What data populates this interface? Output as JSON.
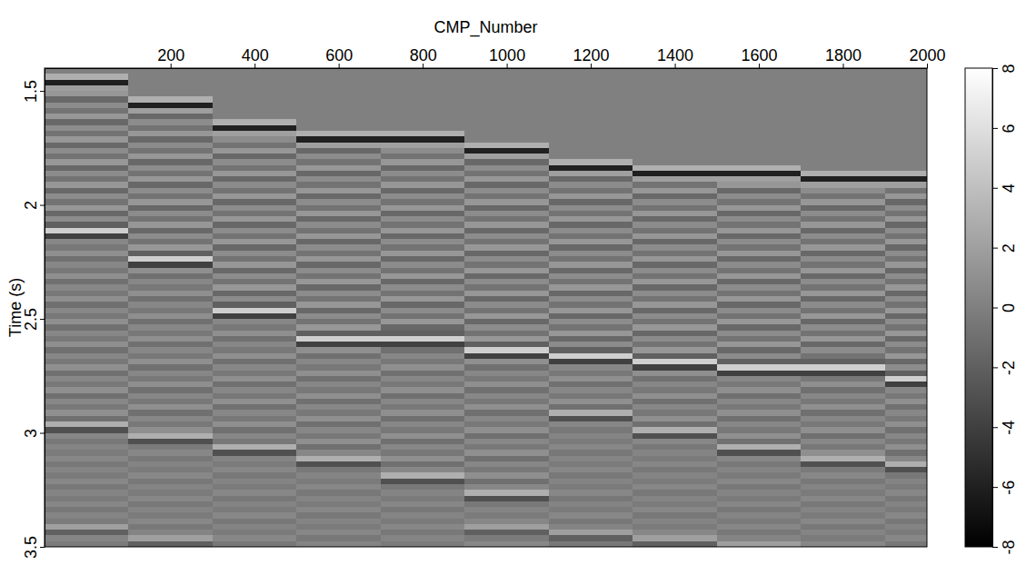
{
  "chart_data": {
    "type": "heatmap",
    "x_label": "CMP_Number",
    "y_label": "Time (s)",
    "xlim": [
      -100,
      2000
    ],
    "ylim": [
      1.4,
      3.5
    ],
    "xticks": [
      200,
      400,
      600,
      800,
      1000,
      1200,
      1400,
      1600,
      1800,
      2000
    ],
    "yticks": [
      1.5,
      2,
      2.5,
      3,
      3.5
    ],
    "x_edges": [
      -100,
      100,
      300,
      500,
      700,
      900,
      1100,
      1300,
      1500,
      1700,
      1900,
      2000
    ],
    "y_edges": [
      1.4,
      1.425,
      1.45,
      1.475,
      1.5,
      1.525,
      1.55,
      1.575,
      1.6,
      1.625,
      1.65,
      1.675,
      1.7,
      1.725,
      1.75,
      1.775,
      1.8,
      1.825,
      1.85,
      1.875,
      1.9,
      1.925,
      1.95,
      1.975,
      2,
      2.025,
      2.05,
      2.075,
      2.1,
      2.125,
      2.15,
      2.175,
      2.2,
      2.225,
      2.25,
      2.275,
      2.3,
      2.325,
      2.35,
      2.375,
      2.4,
      2.425,
      2.45,
      2.475,
      2.5,
      2.525,
      2.55,
      2.575,
      2.6,
      2.625,
      2.65,
      2.675,
      2.7,
      2.725,
      2.75,
      2.775,
      2.8,
      2.825,
      2.85,
      2.875,
      2.9,
      2.925,
      2.95,
      2.975,
      3,
      3.025,
      3.05,
      3.075,
      3.1,
      3.125,
      3.15,
      3.175,
      3.2,
      3.225,
      3.25,
      3.275,
      3.3,
      3.325,
      3.35,
      3.375,
      3.4,
      3.425,
      3.45,
      3.475,
      3.5
    ],
    "z": [
      [
        0,
        0,
        0,
        0,
        0,
        0,
        0,
        0,
        0,
        0,
        0
      ],
      [
        3,
        0,
        0,
        0,
        0,
        0,
        0,
        0,
        0,
        0,
        0
      ],
      [
        -6,
        0,
        0,
        0,
        0,
        0,
        0,
        0,
        0,
        0,
        0
      ],
      [
        2,
        0,
        0,
        0,
        0,
        0,
        0,
        0,
        0,
        0,
        0
      ],
      [
        1.5,
        0,
        0,
        0,
        0,
        0,
        0,
        0,
        0,
        0,
        0
      ],
      [
        -1.5,
        3,
        0,
        0,
        0,
        0,
        0,
        0,
        0,
        0,
        0
      ],
      [
        0.8,
        -6,
        0,
        0,
        0,
        0,
        0,
        0,
        0,
        0,
        0
      ],
      [
        -0.8,
        2,
        0,
        0,
        0,
        0,
        0,
        0,
        0,
        0,
        0
      ],
      [
        1.5,
        -1.5,
        0,
        0,
        0,
        0,
        0,
        0,
        0,
        0,
        0
      ],
      [
        -1.5,
        0.8,
        3,
        0,
        0,
        0,
        0,
        0,
        0,
        0,
        0
      ],
      [
        0.8,
        -0.8,
        -6,
        0,
        0,
        0,
        0,
        0,
        0,
        0,
        0
      ],
      [
        -0.8,
        1.5,
        2,
        3,
        3,
        0,
        0,
        0,
        0,
        0,
        0
      ],
      [
        1.5,
        -1.5,
        0.8,
        -6,
        -6,
        0,
        0,
        0,
        0,
        0,
        0
      ],
      [
        -1.5,
        0.8,
        -0.8,
        2,
        2,
        3,
        0,
        0,
        0,
        0,
        0
      ],
      [
        0.8,
        -0.8,
        1.5,
        -1.5,
        0.8,
        -6,
        0,
        0,
        0,
        0,
        0
      ],
      [
        -0.8,
        1.5,
        -1.5,
        0.8,
        -0.8,
        2,
        0,
        0,
        0,
        0,
        0
      ],
      [
        1.5,
        -1.5,
        0.8,
        -0.8,
        1.5,
        -1.5,
        3,
        0,
        0,
        0,
        0
      ],
      [
        -1.5,
        0.8,
        -0.8,
        1.5,
        -1.5,
        0.8,
        -6,
        3,
        3,
        0,
        0
      ],
      [
        0.8,
        -0.8,
        1.5,
        -1.5,
        0.8,
        -0.8,
        2,
        -6,
        -6,
        3,
        3
      ],
      [
        -0.8,
        1.5,
        -1.5,
        0.8,
        -0.8,
        1.5,
        -1.5,
        2,
        2,
        -6,
        -6
      ],
      [
        1.5,
        -1.5,
        0.8,
        -0.8,
        1.5,
        -1.5,
        0.8,
        -0.8,
        1.5,
        2,
        2
      ],
      [
        -1.5,
        0.8,
        -0.8,
        1.5,
        -1.5,
        0.8,
        -0.8,
        1.5,
        -1.5,
        0.8,
        -0.8
      ],
      [
        0.8,
        -0.8,
        1.5,
        -1.5,
        0.8,
        -0.8,
        1.5,
        -1.5,
        0.8,
        -0.8,
        1.5
      ],
      [
        -0.8,
        1.5,
        -1.5,
        0.8,
        -0.8,
        1.5,
        -1.5,
        0.8,
        -0.8,
        1.5,
        -1.5
      ],
      [
        1.5,
        -1.5,
        0.8,
        -0.8,
        1.5,
        -1.5,
        0.8,
        -0.8,
        1.5,
        -1.5,
        0.8
      ],
      [
        -1.5,
        0.8,
        -0.8,
        1.5,
        -1.5,
        0.8,
        -0.8,
        1.5,
        -1.5,
        0.8,
        -0.8
      ],
      [
        0.8,
        -0.8,
        1.5,
        -1.5,
        0.8,
        -0.8,
        1.5,
        -1.5,
        0.8,
        -0.8,
        1.5
      ],
      [
        -2,
        1.5,
        -1.5,
        0.8,
        -0.8,
        1.5,
        -1.5,
        0.8,
        -0.8,
        1.5,
        -1.5
      ],
      [
        5,
        -1.5,
        0.8,
        -0.8,
        1.5,
        -1.5,
        0.8,
        -0.8,
        1.5,
        -1.5,
        0.8
      ],
      [
        -4,
        0.8,
        -0.8,
        1.5,
        -1.5,
        0.8,
        -0.8,
        1.5,
        -1.5,
        0.8,
        -0.8
      ],
      [
        0.5,
        -0.8,
        1.5,
        -1.5,
        0.8,
        -0.8,
        1.5,
        -1.5,
        0.8,
        -0.8,
        1.5
      ],
      [
        -0.5,
        1.5,
        -1.5,
        0.8,
        -0.8,
        1.5,
        -1.5,
        0.8,
        -0.8,
        1.5,
        -1.5
      ],
      [
        1,
        -2,
        0.8,
        -0.8,
        1.5,
        -1.5,
        0.8,
        -0.8,
        1.5,
        -1.5,
        0.8
      ],
      [
        -1,
        5,
        -0.8,
        1.5,
        -1.5,
        0.8,
        -0.8,
        1.5,
        -1.5,
        0.8,
        -0.8
      ],
      [
        0.5,
        -4,
        1.5,
        -1.5,
        0.8,
        -0.8,
        1.5,
        -1.5,
        0.8,
        -0.8,
        1.5
      ],
      [
        -0.5,
        1,
        -1.5,
        0.8,
        -0.8,
        1.5,
        -1.5,
        0.8,
        -0.8,
        1.5,
        -1.5
      ],
      [
        1,
        -1,
        0.8,
        -0.8,
        1.5,
        -1.5,
        0.8,
        -0.8,
        1.5,
        -1.5,
        0.8
      ],
      [
        -1,
        0.5,
        -0.8,
        1.5,
        -1.5,
        0.8,
        -0.8,
        1.5,
        -1.5,
        0.8,
        -0.8
      ],
      [
        0.5,
        -0.5,
        1.5,
        -1.5,
        0.8,
        -0.8,
        1.5,
        -1.5,
        0.8,
        -0.8,
        1.5
      ],
      [
        -0.5,
        1,
        -1.5,
        0.8,
        -0.8,
        1.5,
        -1.5,
        0.8,
        -0.8,
        1.5,
        -1.5
      ],
      [
        1,
        -1,
        0.8,
        -0.8,
        1.5,
        -1.5,
        0.8,
        -0.8,
        1.5,
        -1.5,
        0.8
      ],
      [
        -1,
        0.5,
        -2,
        1.5,
        -1.5,
        0.8,
        -0.8,
        1.5,
        -1.5,
        0.8,
        -0.8
      ],
      [
        0.5,
        -0.5,
        5,
        -1.5,
        0.8,
        -0.8,
        1.5,
        -1.5,
        0.8,
        -0.8,
        1.5
      ],
      [
        -0.5,
        1,
        -4,
        0.8,
        -0.8,
        1.5,
        -1.5,
        0.8,
        -0.8,
        1.5,
        -1.5
      ],
      [
        1,
        -1,
        0.5,
        -0.8,
        1.5,
        -1.5,
        0.8,
        -0.8,
        1.5,
        -1.5,
        0.8
      ],
      [
        -1,
        0.5,
        -0.5,
        1.5,
        -1.5,
        0.8,
        -0.8,
        1.5,
        -1.5,
        0.8,
        -0.8
      ],
      [
        0.5,
        -0.5,
        1,
        -2,
        -2,
        -0.8,
        1.5,
        -1.5,
        0.8,
        -0.8,
        1.5
      ],
      [
        -0.5,
        1,
        -1,
        5,
        5,
        1.5,
        -1.5,
        0.8,
        -0.8,
        1.5,
        -1.5
      ],
      [
        1,
        -1,
        0.5,
        -4,
        -4,
        -2,
        0.8,
        -0.8,
        1.5,
        -1.5,
        0.8
      ],
      [
        -1,
        0.5,
        -0.5,
        1,
        -1,
        5,
        -2,
        1.5,
        -1.5,
        0.8,
        -0.8
      ],
      [
        0.5,
        -0.5,
        1,
        -1,
        0.5,
        -4,
        5,
        -2,
        0.8,
        -0.8,
        1.5
      ],
      [
        -0.5,
        1,
        -1,
        0.5,
        -0.5,
        1,
        -4,
        5,
        -2,
        -2,
        -1.5
      ],
      [
        1,
        -1,
        0.5,
        -0.5,
        1,
        -1,
        0.5,
        -4,
        5,
        5,
        0.8
      ],
      [
        -1,
        0.5,
        -0.5,
        1,
        -1,
        0.5,
        -0.5,
        1,
        -4,
        -4,
        -2
      ],
      [
        0.5,
        -0.5,
        1,
        -1,
        0.5,
        -0.5,
        1,
        -1,
        0.5,
        -0.5,
        5
      ],
      [
        -0.5,
        1,
        -1,
        0.5,
        -0.5,
        1,
        -1,
        0.5,
        -0.5,
        1,
        -4
      ],
      [
        1,
        -1,
        0.5,
        -0.5,
        1,
        -1,
        0.5,
        -0.5,
        1,
        -1,
        0.5
      ],
      [
        -1,
        0.5,
        -0.5,
        1,
        -1,
        0.5,
        -0.5,
        1,
        -1,
        0.5,
        -0.5
      ],
      [
        0.5,
        -0.5,
        1,
        -1,
        0.5,
        -0.5,
        1,
        -1,
        0.5,
        -0.5,
        1
      ],
      [
        -0.5,
        1,
        -1,
        0.5,
        -0.5,
        1,
        -1,
        0.5,
        -0.5,
        1,
        -1
      ],
      [
        1,
        -1,
        0.5,
        -0.5,
        1,
        -1,
        3,
        -0.5,
        1,
        -1,
        0.5
      ],
      [
        -1,
        0.5,
        -0.5,
        1,
        -1,
        0.5,
        -3,
        1,
        -1,
        0.5,
        -0.5
      ],
      [
        3,
        -0.5,
        1,
        -1,
        0.5,
        -0.5,
        0.5,
        -1,
        0.5,
        -0.5,
        1
      ],
      [
        -3,
        1,
        -1,
        0.5,
        -0.5,
        1,
        -0.5,
        3,
        -0.5,
        1,
        -1
      ],
      [
        0.5,
        3,
        0.5,
        -0.5,
        1,
        -1,
        0.3,
        -3,
        1,
        -1,
        0.5
      ],
      [
        -0.5,
        -3,
        -0.5,
        1,
        -1,
        0.5,
        -0.3,
        0.5,
        -1,
        0.5,
        -0.5
      ],
      [
        0.3,
        -0.3,
        3,
        -1,
        0.5,
        -0.5,
        0.5,
        -0.5,
        3,
        -0.5,
        1
      ],
      [
        -0.3,
        0.5,
        -3,
        0.5,
        -0.5,
        1,
        -0.5,
        0.3,
        -3,
        1,
        -1
      ],
      [
        0.5,
        -0.5,
        0.3,
        3,
        1,
        -1,
        0.3,
        -0.3,
        0.5,
        3,
        0.5
      ],
      [
        -0.5,
        0.3,
        -0.3,
        -3,
        -1,
        0.5,
        -0.3,
        0.5,
        -0.5,
        -3,
        3
      ],
      [
        0.3,
        -0.3,
        0.5,
        -0.5,
        0.5,
        -0.5,
        0.5,
        -0.5,
        0.3,
        -0.3,
        -3
      ],
      [
        -0.3,
        0.5,
        -0.5,
        0.3,
        3,
        1,
        -0.5,
        0.3,
        -0.3,
        0.5,
        -0.5
      ],
      [
        0.5,
        -0.5,
        0.3,
        -0.3,
        -3,
        -1,
        0.3,
        -0.3,
        0.5,
        -0.5,
        0.3
      ],
      [
        -0.5,
        0.3,
        -0.3,
        0.5,
        -0.5,
        0.5,
        -0.3,
        0.5,
        -0.5,
        0.3,
        -0.3
      ],
      [
        0.3,
        -0.3,
        0.5,
        -0.5,
        0.3,
        3,
        0.5,
        -0.5,
        0.3,
        -0.3,
        0.5
      ],
      [
        -0.3,
        0.5,
        -0.5,
        0.3,
        -0.3,
        -3,
        -0.5,
        0.3,
        -0.3,
        0.5,
        -0.5
      ],
      [
        0.5,
        -0.5,
        0.3,
        -0.3,
        0.5,
        -0.5,
        0.3,
        -0.3,
        0.5,
        -0.5,
        0.3
      ],
      [
        -0.5,
        0.3,
        -0.3,
        0.5,
        -0.5,
        0.3,
        -0.3,
        0.5,
        -0.5,
        0.3,
        -0.3
      ],
      [
        0.3,
        -0.3,
        0.5,
        -0.5,
        0.3,
        -0.3,
        0.5,
        -0.5,
        0.3,
        -0.3,
        0.5
      ],
      [
        -0.3,
        0.5,
        -0.5,
        0.3,
        -0.3,
        0.5,
        -0.5,
        0.3,
        -0.3,
        0.5,
        -0.5
      ],
      [
        2,
        -0.5,
        0.3,
        -0.3,
        0.5,
        2,
        0.3,
        -0.3,
        0.5,
        -0.5,
        0.3
      ],
      [
        -2,
        0.3,
        -0.3,
        0.5,
        -0.5,
        -2,
        2,
        0.5,
        -0.5,
        0.3,
        -0.3
      ],
      [
        0.3,
        2,
        0.5,
        -0.5,
        0.3,
        -0.3,
        -2,
        2,
        0.3,
        -0.3,
        0.5
      ],
      [
        -0.3,
        -2,
        -0.5,
        0.3,
        -0.3,
        0.5,
        -0.5,
        -2,
        2,
        0.5,
        -0.5
      ]
    ],
    "colorbar": {
      "range": [
        -8,
        8
      ],
      "ticks": [
        -8,
        -6,
        -4,
        -2,
        0,
        2,
        4,
        6,
        8
      ]
    }
  }
}
